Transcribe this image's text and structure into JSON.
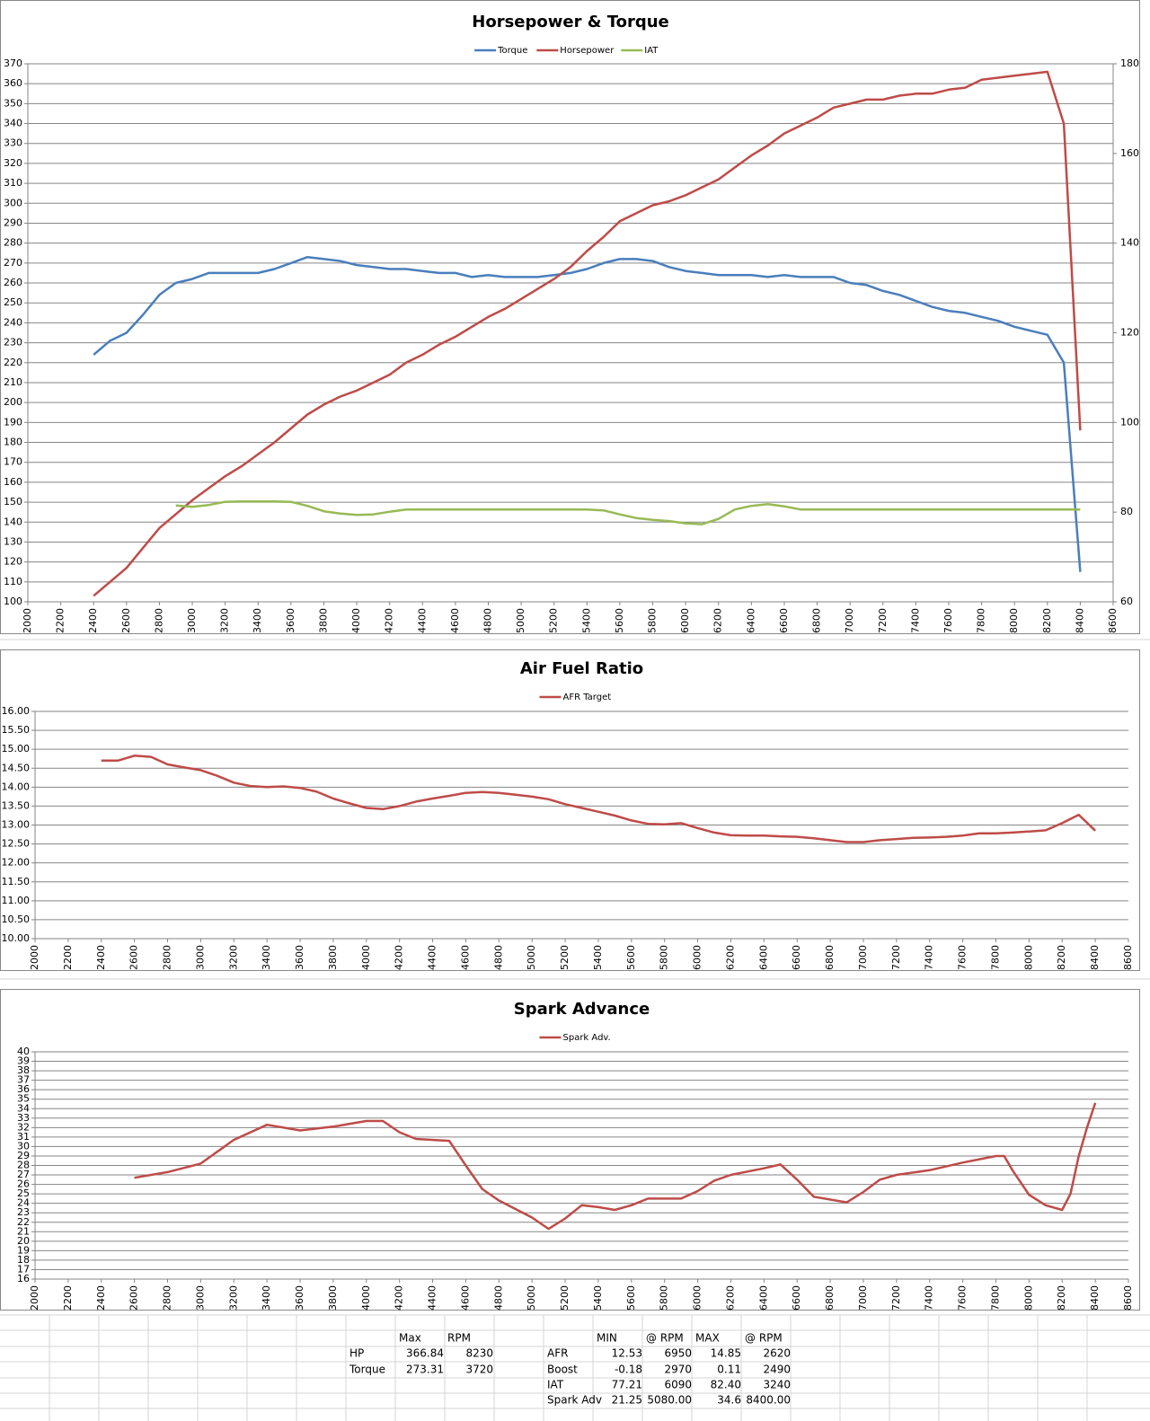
{
  "chart_data": [
    {
      "type": "line",
      "title": "Horsepower & Torque",
      "x": [
        2400,
        2500,
        2600,
        2700,
        2800,
        2900,
        3000,
        3100,
        3200,
        3300,
        3400,
        3500,
        3600,
        3700,
        3800,
        3900,
        4000,
        4100,
        4200,
        4300,
        4400,
        4500,
        4600,
        4700,
        4800,
        4900,
        5000,
        5100,
        5200,
        5300,
        5400,
        5500,
        5600,
        5700,
        5800,
        5900,
        6000,
        6100,
        6200,
        6300,
        6400,
        6500,
        6600,
        6700,
        6800,
        6900,
        7000,
        7100,
        7200,
        7300,
        7400,
        7500,
        7600,
        7700,
        7800,
        7900,
        8000,
        8100,
        8200,
        8300,
        8400
      ],
      "series": [
        {
          "name": "Torque",
          "color": "#4a7ebb",
          "values": [
            224,
            231,
            235,
            244,
            254,
            260,
            262,
            265,
            265,
            265,
            265,
            267,
            270,
            273,
            272,
            271,
            269,
            268,
            267,
            267,
            266,
            265,
            265,
            263,
            264,
            263,
            263,
            263,
            264,
            265,
            267,
            270,
            272,
            272,
            271,
            268,
            266,
            265,
            264,
            264,
            264,
            263,
            264,
            263,
            263,
            263,
            260,
            259,
            256,
            254,
            251,
            248,
            246,
            245,
            243,
            241,
            238,
            236,
            234,
            220,
            115
          ]
        },
        {
          "name": "Horsepower",
          "color": "#be4b48",
          "values": [
            103,
            110,
            117,
            127,
            137,
            144,
            151,
            157,
            163,
            168,
            174,
            180,
            187,
            194,
            199,
            203,
            206,
            210,
            214,
            220,
            224,
            229,
            233,
            238,
            243,
            247,
            252,
            257,
            262,
            268,
            276,
            283,
            291,
            295,
            299,
            301,
            304,
            308,
            312,
            318,
            324,
            329,
            335,
            339,
            343,
            348,
            350,
            352,
            352,
            354,
            355,
            355,
            357,
            358,
            362,
            363,
            364,
            365,
            366,
            340,
            186
          ]
        },
        {
          "name": "IAT",
          "color": "#98b954",
          "axis": "y2",
          "values": [
            null,
            null,
            null,
            null,
            null,
            81.5,
            81.2,
            81.6,
            82.3,
            82.4,
            82.4,
            82.4,
            82.3,
            81.4,
            80.2,
            79.7,
            79.4,
            79.5,
            80.1,
            80.6,
            80.6,
            80.6,
            80.6,
            80.6,
            80.6,
            80.6,
            80.6,
            80.6,
            80.6,
            80.6,
            80.6,
            80.4,
            79.5,
            78.7,
            78.3,
            78.0,
            77.5,
            77.3,
            78.5,
            80.6,
            81.4,
            81.8,
            81.3,
            80.6,
            80.6,
            80.6,
            80.6,
            80.6,
            80.6,
            80.6,
            80.6,
            80.6,
            80.6,
            80.6,
            80.6,
            80.6,
            80.6,
            80.6,
            80.6,
            80.6,
            80.6
          ]
        }
      ],
      "xlim": [
        2000,
        8600
      ],
      "xticks": [
        2000,
        2200,
        2400,
        2600,
        2800,
        3000,
        3200,
        3400,
        3600,
        3800,
        4000,
        4200,
        4400,
        4600,
        4800,
        5000,
        5200,
        5400,
        5600,
        5800,
        6000,
        6200,
        6400,
        6600,
        6800,
        7000,
        7200,
        7400,
        7600,
        7800,
        8000,
        8200,
        8400,
        8600
      ],
      "ylim": [
        100,
        370
      ],
      "yticks": [
        100,
        110,
        120,
        130,
        140,
        150,
        160,
        170,
        180,
        190,
        200,
        210,
        220,
        230,
        240,
        250,
        260,
        270,
        280,
        290,
        300,
        310,
        320,
        330,
        340,
        350,
        360,
        370
      ],
      "y2lim": [
        60,
        180
      ],
      "y2ticks": [
        60,
        80,
        100,
        120,
        140,
        160,
        180
      ],
      "grid": true
    },
    {
      "type": "line",
      "title": "Air Fuel Ratio",
      "x": [
        2400,
        2500,
        2600,
        2700,
        2800,
        2900,
        3000,
        3100,
        3200,
        3300,
        3400,
        3500,
        3600,
        3700,
        3800,
        3900,
        4000,
        4100,
        4200,
        4300,
        4400,
        4500,
        4600,
        4700,
        4800,
        4900,
        5000,
        5100,
        5200,
        5300,
        5400,
        5500,
        5600,
        5700,
        5800,
        5900,
        6000,
        6100,
        6200,
        6300,
        6400,
        6500,
        6600,
        6700,
        6800,
        6900,
        7000,
        7100,
        7200,
        7300,
        7400,
        7500,
        7600,
        7700,
        7800,
        7900,
        8000,
        8100,
        8200,
        8300,
        8400
      ],
      "series": [
        {
          "name": "AFR Target",
          "color": "#be4b48",
          "values": [
            14.7,
            14.7,
            14.83,
            14.8,
            14.6,
            14.52,
            14.45,
            14.3,
            14.12,
            14.03,
            14.0,
            14.02,
            13.98,
            13.88,
            13.7,
            13.57,
            13.45,
            13.42,
            13.5,
            13.62,
            13.7,
            13.77,
            13.85,
            13.87,
            13.85,
            13.8,
            13.75,
            13.68,
            13.55,
            13.45,
            13.35,
            13.25,
            13.12,
            13.03,
            13.02,
            13.05,
            12.92,
            12.8,
            12.73,
            12.72,
            12.72,
            12.7,
            12.69,
            12.65,
            12.6,
            12.55,
            12.55,
            12.6,
            12.63,
            12.66,
            12.67,
            12.69,
            12.72,
            12.78,
            12.78,
            12.8,
            12.83,
            12.86,
            13.05,
            13.27,
            12.85
          ]
        }
      ],
      "xlim": [
        2000,
        8600
      ],
      "xticks": [
        2000,
        2200,
        2400,
        2600,
        2800,
        3000,
        3200,
        3400,
        3600,
        3800,
        4000,
        4200,
        4400,
        4600,
        4800,
        5000,
        5200,
        5400,
        5600,
        5800,
        6000,
        6200,
        6400,
        6600,
        6800,
        7000,
        7200,
        7400,
        7600,
        7800,
        8000,
        8200,
        8400,
        8600
      ],
      "ylim": [
        10,
        16
      ],
      "yticks": [
        {
          "value": 10,
          "label": "10.00"
        },
        {
          "value": 10.5,
          "label": "10.50"
        },
        {
          "value": 11,
          "label": "11.00"
        },
        {
          "value": 11.5,
          "label": "11.50"
        },
        {
          "value": 12,
          "label": "12.00"
        },
        {
          "value": 12.5,
          "label": "12.50"
        },
        {
          "value": 13,
          "label": "13.00"
        },
        {
          "value": 13.5,
          "label": "13.50"
        },
        {
          "value": 14,
          "label": "14.00"
        },
        {
          "value": 14.5,
          "label": "14.50"
        },
        {
          "value": 15,
          "label": "15.00"
        },
        {
          "value": 15.5,
          "label": "15.50"
        },
        {
          "value": 16,
          "label": "16.00"
        }
      ],
      "grid": true
    },
    {
      "type": "line",
      "title": "Spark Advance",
      "x": [
        2600,
        2800,
        3000,
        3200,
        3400,
        3600,
        3800,
        4000,
        4100,
        4200,
        4300,
        4500,
        4600,
        4700,
        4800,
        5000,
        5100,
        5200,
        5300,
        5400,
        5500,
        5600,
        5700,
        5900,
        6000,
        6100,
        6200,
        6400,
        6500,
        6600,
        6700,
        6900,
        7000,
        7100,
        7200,
        7400,
        7600,
        7800,
        7850,
        7900,
        8000,
        8100,
        8200,
        8250,
        8300,
        8350,
        8400
      ],
      "series": [
        {
          "name": "Spark Adv.",
          "color": "#be4b48",
          "values": [
            26.7,
            27.3,
            28.2,
            30.7,
            32.3,
            31.7,
            32.1,
            32.7,
            32.7,
            31.5,
            30.8,
            30.6,
            28.0,
            25.5,
            24.3,
            22.5,
            21.3,
            22.4,
            23.8,
            23.6,
            23.3,
            23.8,
            24.5,
            24.5,
            25.3,
            26.4,
            27.0,
            27.7,
            28.1,
            26.5,
            24.7,
            24.1,
            25.2,
            26.5,
            27.0,
            27.5,
            28.3,
            29.0,
            29.0,
            27.5,
            24.9,
            23.8,
            23.3,
            25.0,
            29.0,
            32.0,
            34.6
          ]
        }
      ],
      "xlim": [
        2000,
        8600
      ],
      "xticks": [
        2000,
        2200,
        2400,
        2600,
        2800,
        3000,
        3200,
        3400,
        3600,
        3800,
        4000,
        4200,
        4400,
        4600,
        4800,
        5000,
        5200,
        5400,
        5600,
        5800,
        6000,
        6200,
        6400,
        6600,
        6800,
        7000,
        7200,
        7400,
        7600,
        7800,
        8000,
        8200,
        8400,
        8600
      ],
      "ylim": [
        16,
        40
      ],
      "yticks": [
        16,
        17,
        18,
        19,
        20,
        21,
        22,
        23,
        24,
        25,
        26,
        27,
        28,
        29,
        30,
        31,
        32,
        33,
        34,
        35,
        36,
        37,
        38,
        39,
        40
      ],
      "grid": true
    }
  ],
  "summary": {
    "left": {
      "columns": [
        "Max",
        "RPM"
      ],
      "rows": [
        [
          "HP",
          "366.84",
          "8230"
        ],
        [
          "Torque",
          "273.31",
          "3720"
        ]
      ]
    },
    "right": {
      "columns": [
        "MIN",
        "@ RPM",
        "MAX",
        "@ RPM"
      ],
      "rows": [
        [
          "AFR",
          "12.53",
          "6950",
          "14.85",
          "2620"
        ],
        [
          "Boost",
          "-0.18",
          "2970",
          "0.11",
          "2490"
        ],
        [
          "IAT",
          "77.21",
          "6090",
          "82.40",
          "3240"
        ],
        [
          "Spark Adv",
          "21.25",
          "5080.00",
          "34.6",
          "8400.00"
        ]
      ]
    }
  }
}
